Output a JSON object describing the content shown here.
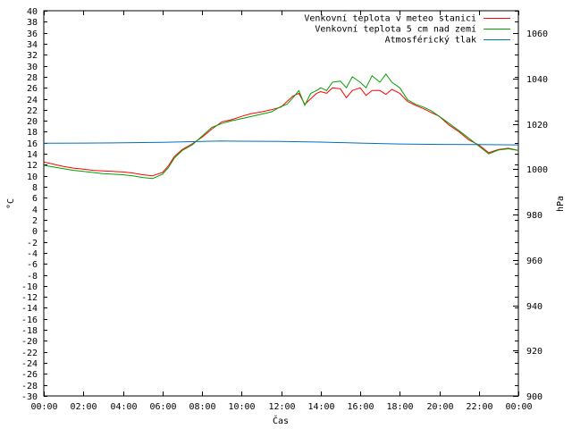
{
  "chart_data": {
    "type": "line",
    "xlabel": "Čas",
    "ylabel": "°C",
    "y2label": "hPa",
    "ylim": [
      -30,
      40
    ],
    "y2lim": [
      900,
      1070
    ],
    "xlim": [
      0,
      24
    ],
    "x_ticks": [
      "00:00",
      "02:00",
      "04:00",
      "06:00",
      "08:00",
      "10:00",
      "12:00",
      "14:00",
      "16:00",
      "18:00",
      "20:00",
      "22:00",
      "00:00"
    ],
    "y_ticks": [
      -30,
      -28,
      -26,
      -24,
      -22,
      -20,
      -18,
      -16,
      -14,
      -12,
      -10,
      -8,
      -6,
      -4,
      -2,
      0,
      2,
      4,
      6,
      8,
      10,
      12,
      14,
      16,
      18,
      20,
      22,
      24,
      26,
      28,
      30,
      32,
      34,
      36,
      38,
      40
    ],
    "y2_ticks": [
      900,
      920,
      940,
      960,
      980,
      1000,
      1020,
      1040,
      1060
    ],
    "legend_position": "top-right",
    "grid": false,
    "series": [
      {
        "name": "Venkovní teplota v meteo stanici",
        "axis": "left",
        "color": "#ff0000",
        "x": [
          0,
          0.5,
          1,
          1.5,
          2,
          2.5,
          3,
          3.5,
          4,
          4.5,
          5,
          5.5,
          6,
          6.3,
          6.6,
          7,
          7.5,
          8,
          8.5,
          9,
          9.5,
          10,
          10.5,
          11,
          11.5,
          12,
          12.3,
          12.6,
          12.9,
          13.2,
          13.5,
          13.8,
          14,
          14.3,
          14.6,
          15,
          15.3,
          15.6,
          16,
          16.3,
          16.6,
          17,
          17.3,
          17.6,
          18,
          18.4,
          18.8,
          19.2,
          19.6,
          20,
          20.5,
          21,
          21.5,
          22,
          22.5,
          23,
          23.5,
          24
        ],
        "values": [
          12.5,
          12.1,
          11.7,
          11.4,
          11.2,
          11.0,
          10.9,
          10.8,
          10.7,
          10.5,
          10.2,
          10.0,
          10.6,
          11.8,
          13.5,
          14.8,
          15.8,
          17.0,
          18.5,
          19.8,
          20.2,
          20.8,
          21.3,
          21.6,
          22.0,
          22.5,
          23.5,
          24.5,
          25.0,
          23.0,
          24.0,
          25.0,
          25.3,
          25.0,
          26.0,
          25.8,
          24.2,
          25.5,
          26.0,
          24.6,
          25.5,
          25.5,
          24.8,
          25.7,
          25.0,
          23.5,
          22.8,
          22.2,
          21.5,
          20.8,
          19.2,
          18.0,
          16.5,
          15.6,
          14.2,
          14.8,
          15.0,
          14.6
        ]
      },
      {
        "name": "Venkovní teplota 5 cm nad zemí",
        "axis": "left",
        "color": "#00a000",
        "x": [
          0,
          0.5,
          1,
          1.5,
          2,
          2.5,
          3,
          3.5,
          4,
          4.5,
          5,
          5.5,
          6,
          6.3,
          6.6,
          7,
          7.5,
          8,
          8.5,
          9,
          9.5,
          10,
          10.5,
          11,
          11.5,
          12,
          12.3,
          12.6,
          12.9,
          13.2,
          13.5,
          13.8,
          14,
          14.3,
          14.6,
          15,
          15.3,
          15.6,
          16,
          16.3,
          16.6,
          17,
          17.3,
          17.6,
          18,
          18.4,
          18.8,
          19.2,
          19.6,
          20,
          20.5,
          21,
          21.5,
          22,
          22.5,
          23,
          23.5,
          24
        ],
        "values": [
          11.9,
          11.6,
          11.3,
          11.0,
          10.8,
          10.6,
          10.4,
          10.3,
          10.2,
          10.0,
          9.7,
          9.5,
          10.3,
          11.5,
          13.2,
          14.6,
          15.6,
          17.2,
          18.8,
          19.5,
          20.0,
          20.4,
          20.8,
          21.2,
          21.6,
          22.6,
          23.0,
          24.2,
          25.5,
          22.8,
          25.0,
          25.5,
          26.0,
          25.5,
          27.0,
          27.2,
          26.0,
          28.0,
          27.0,
          26.0,
          28.2,
          27.0,
          28.5,
          27.0,
          26.0,
          23.8,
          23.0,
          22.5,
          21.8,
          20.8,
          19.5,
          18.2,
          16.8,
          15.4,
          14.0,
          14.7,
          14.9,
          14.6
        ]
      },
      {
        "name": "Atmosférický tlak",
        "axis": "right",
        "color": "#0070c0",
        "x": [
          0,
          2,
          4,
          6,
          8,
          9,
          10,
          12,
          14,
          16,
          18,
          20,
          22,
          24
        ],
        "values": [
          1011.5,
          1011.6,
          1011.7,
          1011.9,
          1012.3,
          1012.5,
          1012.4,
          1012.3,
          1012.0,
          1011.6,
          1011.2,
          1011.0,
          1010.9,
          1010.8
        ]
      }
    ]
  }
}
